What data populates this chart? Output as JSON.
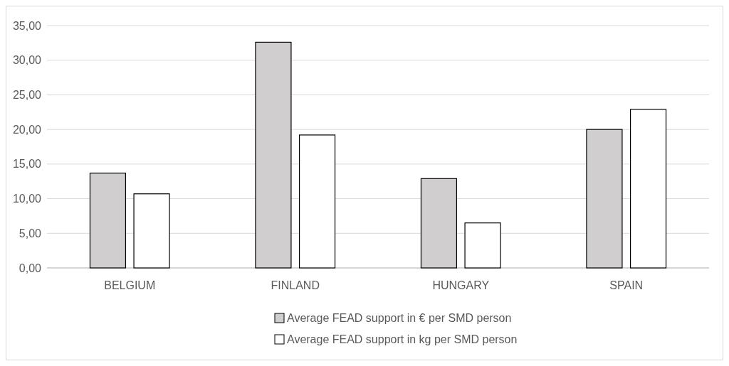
{
  "chart_data": {
    "type": "bar",
    "categories": [
      "BELGIUM",
      "FINLAND",
      "HUNGARY",
      "SPAIN"
    ],
    "series": [
      {
        "name": "Average FEAD support in € per SMD person",
        "color": "#d0cece",
        "values": [
          13.7,
          32.6,
          12.9,
          20.0
        ]
      },
      {
        "name": "Average FEAD support in kg per SMD person",
        "color": "#ffffff",
        "values": [
          10.7,
          19.2,
          6.5,
          22.9
        ]
      }
    ],
    "ylim": [
      0,
      35
    ],
    "yticks": [
      {
        "value": 0,
        "label": "0,00"
      },
      {
        "value": 5,
        "label": "5,00"
      },
      {
        "value": 10,
        "label": "10,00"
      },
      {
        "value": 15,
        "label": "15,00"
      },
      {
        "value": 20,
        "label": "20,00"
      },
      {
        "value": 25,
        "label": "25,00"
      },
      {
        "value": 30,
        "label": "30,00"
      },
      {
        "value": 35,
        "label": "35,00"
      }
    ],
    "grid": "y",
    "legend": "bottom"
  }
}
